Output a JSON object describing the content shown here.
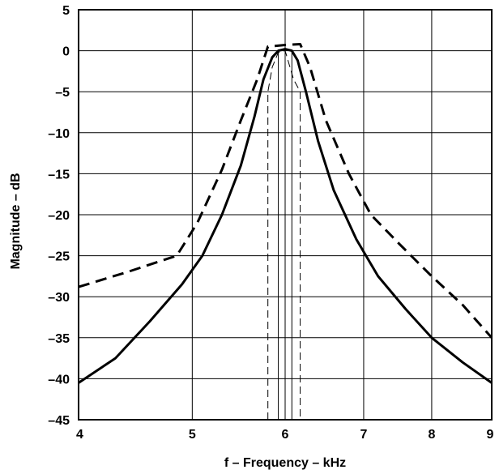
{
  "chart_data": {
    "type": "line",
    "title": "",
    "xlabel": "f – Frequency – kHz",
    "ylabel": "Magnitude – dB",
    "x_scale": "log",
    "xlim": [
      4,
      9
    ],
    "ylim": [
      -45,
      5
    ],
    "x_ticks": [
      4,
      5,
      6,
      7,
      8,
      9
    ],
    "x_tick_labels": [
      "4",
      "5",
      "6",
      "7",
      "8",
      "9"
    ],
    "y_ticks": [
      5,
      0,
      -5,
      -10,
      -15,
      -20,
      -25,
      -30,
      -35,
      -40,
      -45
    ],
    "y_tick_labels": [
      "5",
      "0",
      "–5",
      "–10",
      "–15",
      "–20",
      "–25",
      "–30",
      "–35",
      "–40",
      "–45"
    ],
    "grid": true,
    "legend": "none",
    "series": [
      {
        "style": "solid",
        "color": "#000000",
        "x": [
          4.0,
          4.3,
          4.6,
          4.9,
          5.1,
          5.3,
          5.5,
          5.65,
          5.75,
          5.85,
          5.92,
          6.0,
          6.08,
          6.15,
          6.25,
          6.4,
          6.6,
          6.9,
          7.2,
          7.6,
          8.0,
          8.5,
          9.0
        ],
        "y": [
          -40.5,
          -37.5,
          -33.0,
          -28.5,
          -25.0,
          -20.0,
          -14.0,
          -8.0,
          -3.5,
          -0.8,
          0.0,
          0.2,
          0.0,
          -1.2,
          -5.0,
          -11.0,
          -17.0,
          -23.0,
          -27.5,
          -31.5,
          -35.0,
          -38.0,
          -40.5
        ]
      },
      {
        "style": "dashed",
        "color": "#000000",
        "x": [
          4.0,
          4.4,
          4.85,
          5.05,
          5.3,
          5.5,
          5.68,
          5.8,
          6.0,
          6.18,
          6.3,
          6.5,
          6.8,
          7.1,
          7.5,
          8.0,
          8.5,
          9.0
        ],
        "y": [
          -28.8,
          -27.0,
          -25.0,
          -21.0,
          -14.5,
          -8.5,
          -3.5,
          0.5,
          0.7,
          0.8,
          -2.0,
          -8.5,
          -15.0,
          -20.0,
          -23.5,
          -27.5,
          -31.0,
          -35.0
        ]
      },
      {
        "style": "thin-dashed",
        "color": "#000000",
        "x": [
          5.8,
          5.8,
          5.85,
          5.92,
          6.0,
          6.1,
          6.18,
          6.18
        ],
        "y": [
          -45,
          -5.0,
          -2.0,
          -0.2,
          0.0,
          -3.5,
          -5.0,
          -45
        ]
      },
      {
        "style": "thin-solid",
        "color": "#000000",
        "x": [
          5.92,
          5.92,
          6.0,
          6.08,
          6.08
        ],
        "y": [
          -45,
          0.0,
          0.2,
          0.0,
          -45
        ]
      }
    ]
  }
}
